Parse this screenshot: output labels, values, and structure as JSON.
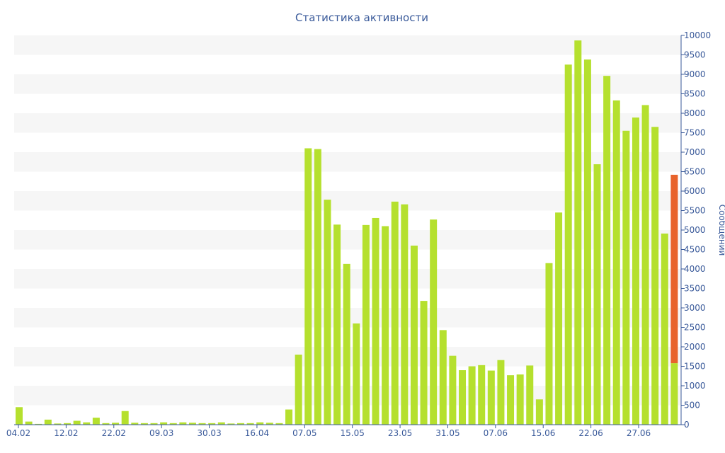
{
  "chart_data": {
    "type": "bar",
    "title": "Статистика активности",
    "ylabel": "Сообщений",
    "ylim": [
      0,
      10000
    ],
    "y_ticks": [
      0,
      500,
      1000,
      1500,
      2000,
      2500,
      3000,
      3500,
      4000,
      4500,
      5000,
      5500,
      6000,
      6500,
      7000,
      7500,
      8000,
      8500,
      9000,
      9500,
      10000
    ],
    "y_axis_side": "right",
    "x_tick_labels": [
      "04.02",
      "12.02",
      "22.02",
      "09.03",
      "30.03",
      "16.04",
      "07.05",
      "15.05",
      "23.05",
      "31.05",
      "07.06",
      "15.06",
      "22.06",
      "27.06"
    ],
    "grid": "horizontal alternating bands",
    "colors": {
      "bar": "#b5e02e",
      "highlight": "#e8632b",
      "band": "#f6f6f6",
      "axis": "#3a5a9a"
    },
    "series": [
      {
        "values": [
          450,
          80,
          20,
          130,
          30,
          40,
          100,
          60,
          180,
          40,
          50,
          350,
          50,
          40,
          40,
          60,
          40,
          60,
          50,
          40,
          40,
          60,
          30,
          40,
          40,
          60,
          50,
          40,
          390,
          1800,
          7100,
          7080,
          5780,
          5140,
          4130,
          2600,
          5130,
          5310,
          5100,
          5730,
          5660,
          4600,
          3180,
          5270,
          2430,
          1770,
          1400,
          1500,
          1530,
          1390,
          1660,
          1270,
          1290,
          1520,
          650,
          4150,
          5450,
          9250,
          9870,
          9380,
          6690,
          8960,
          8330,
          7550,
          7890,
          8210,
          7650,
          4910,
          6420
        ]
      }
    ],
    "highlight": {
      "index": 68,
      "from": 1580,
      "to": 6420
    }
  }
}
